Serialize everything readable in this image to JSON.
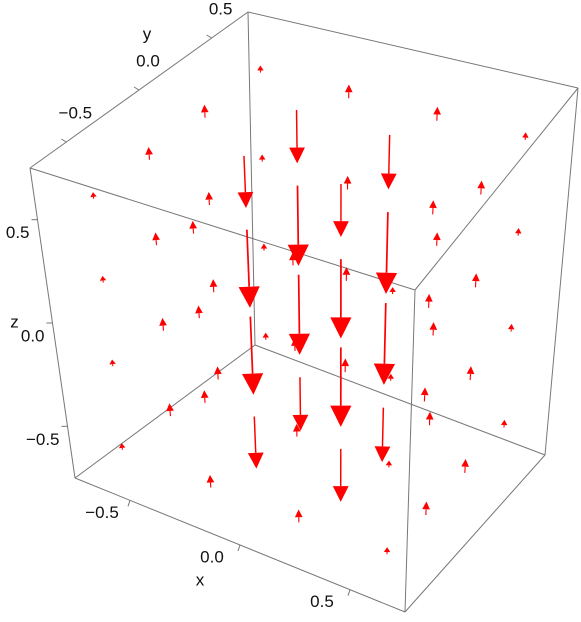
{
  "chart_data": {
    "type": "vector3d",
    "x_label": "x",
    "y_label": "y",
    "z_label": "z",
    "color": "#ff0000",
    "xlim": [
      -0.75,
      0.75
    ],
    "ylim": [
      -0.75,
      0.75
    ],
    "zlim": [
      -0.75,
      0.75
    ],
    "xticks": [
      {
        "value": -0.5,
        "label": "−0.5"
      },
      {
        "value": 0,
        "label": "0.0"
      },
      {
        "value": 0.5,
        "label": "0.5"
      }
    ],
    "yticks": [
      {
        "value": -0.5,
        "label": "−0.5"
      },
      {
        "value": 0,
        "label": "0.0"
      },
      {
        "value": 0.5,
        "label": "0.5"
      }
    ],
    "zticks": [
      {
        "value": -0.5,
        "label": "−0.5"
      },
      {
        "value": 0,
        "label": "0.0"
      },
      {
        "value": 0.5,
        "label": "0.5"
      }
    ],
    "x": [
      -0.6,
      -0.2,
      0.2,
      0.6,
      -0.6,
      -0.2,
      0.2,
      0.6,
      -0.6,
      -0.2,
      0.2,
      0.6,
      -0.6,
      -0.2,
      0.2,
      0.6,
      -0.6,
      -0.2,
      0.2,
      0.6,
      -0.6,
      -0.2,
      0.2,
      0.6,
      -0.6,
      -0.2,
      0.2,
      0.6,
      -0.6,
      -0.2,
      0.2,
      0.6,
      -0.6,
      -0.2,
      0.2,
      0.6,
      -0.6,
      -0.2,
      0.2,
      0.6,
      -0.6,
      -0.2,
      0.2,
      0.6,
      -0.6,
      -0.2,
      0.2,
      0.6,
      -0.6,
      -0.2,
      0.2,
      0.6,
      -0.6,
      -0.2,
      0.2,
      0.6,
      -0.6,
      -0.2,
      0.2,
      0.6,
      -0.6,
      -0.2,
      0.2,
      0.6
    ],
    "y": [
      -0.6,
      -0.6,
      -0.6,
      -0.6,
      -0.2,
      -0.2,
      -0.2,
      -0.2,
      0.2,
      0.2,
      0.2,
      0.2,
      0.6,
      0.6,
      0.6,
      0.6,
      -0.6,
      -0.6,
      -0.6,
      -0.6,
      -0.2,
      -0.2,
      -0.2,
      -0.2,
      0.2,
      0.2,
      0.2,
      0.2,
      0.6,
      0.6,
      0.6,
      0.6,
      -0.6,
      -0.6,
      -0.6,
      -0.6,
      -0.2,
      -0.2,
      -0.2,
      -0.2,
      0.2,
      0.2,
      0.2,
      0.2,
      0.6,
      0.6,
      0.6,
      0.6,
      -0.6,
      -0.6,
      -0.6,
      -0.6,
      -0.2,
      -0.2,
      -0.2,
      -0.2,
      0.2,
      0.2,
      0.2,
      0.2,
      0.6,
      0.6,
      0.6,
      0.6
    ],
    "z": [
      -0.6,
      -0.6,
      -0.6,
      -0.6,
      -0.6,
      -0.6,
      -0.6,
      -0.6,
      -0.6,
      -0.6,
      -0.6,
      -0.6,
      -0.6,
      -0.6,
      -0.6,
      -0.6,
      -0.2,
      -0.2,
      -0.2,
      -0.2,
      -0.2,
      -0.2,
      -0.2,
      -0.2,
      -0.2,
      -0.2,
      -0.2,
      -0.2,
      -0.2,
      -0.2,
      -0.2,
      -0.2,
      0.2,
      0.2,
      0.2,
      0.2,
      0.2,
      0.2,
      0.2,
      0.2,
      0.2,
      0.2,
      0.2,
      0.2,
      0.2,
      0.2,
      0.2,
      0.2,
      0.6,
      0.6,
      0.6,
      0.6,
      0.6,
      0.6,
      0.6,
      0.6,
      0.6,
      0.6,
      0.6,
      0.6,
      0.6,
      0.6,
      0.6,
      0.6
    ],
    "w": [
      0.08,
      0.15,
      0.15,
      0.08,
      0.15,
      -0.6,
      -0.6,
      0.15,
      0.15,
      -0.6,
      -0.6,
      0.15,
      0.08,
      0.15,
      0.15,
      0.08,
      0.08,
      0.15,
      0.15,
      0.08,
      0.15,
      -0.9,
      -0.9,
      0.15,
      0.15,
      -0.9,
      -0.9,
      0.15,
      0.08,
      0.15,
      0.15,
      0.08,
      0.08,
      0.15,
      0.15,
      0.08,
      0.15,
      -0.9,
      -0.9,
      0.15,
      0.15,
      -0.9,
      -0.9,
      0.15,
      0.08,
      0.15,
      0.15,
      0.08,
      0.08,
      0.15,
      0.15,
      0.08,
      0.15,
      -0.6,
      -0.6,
      0.15,
      0.15,
      -0.6,
      -0.6,
      0.15,
      0.08,
      0.15,
      0.15,
      0.08
    ]
  }
}
